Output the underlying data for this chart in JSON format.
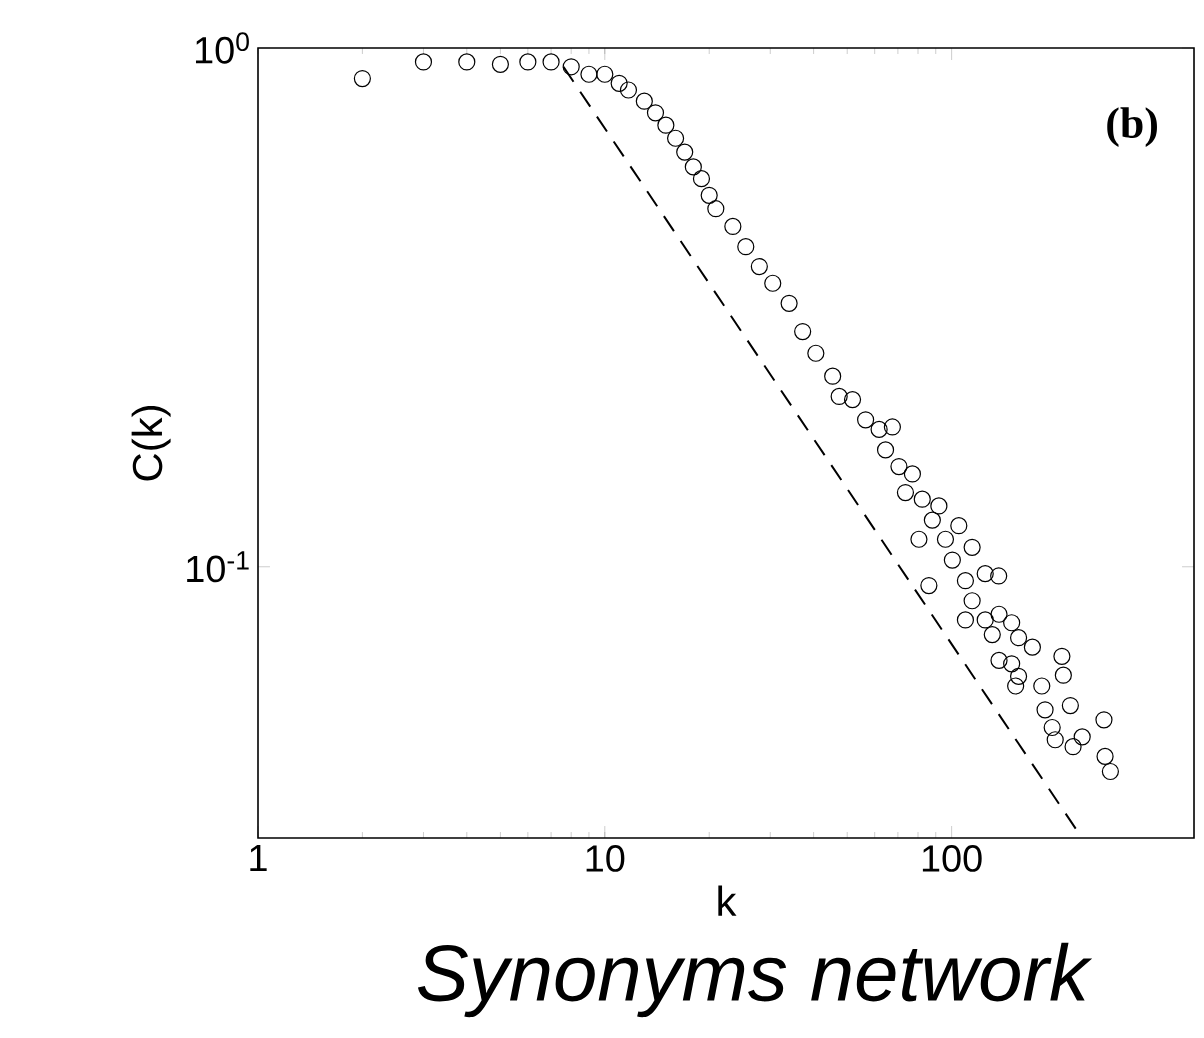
{
  "chart_data": {
    "type": "scatter",
    "log": "xy",
    "xlabel": "k",
    "ylabel": "C(k)",
    "xlim": [
      1,
      500
    ],
    "ylim": [
      0.03,
      1
    ],
    "xticks": [
      1,
      10,
      100
    ],
    "yticks": [
      {
        "value": 1,
        "label": "10$^{0}$"
      },
      {
        "value": 0.1,
        "label": "10$^{-1}$"
      }
    ],
    "marker": "circle",
    "annotations": [
      "**(b)**",
      "*Synonyms network*"
    ],
    "series": [
      {
        "color": "#000000",
        "x": [
          2,
          3,
          4,
          5,
          6,
          7,
          8,
          9,
          10,
          11,
          11.7,
          13,
          14,
          15,
          16,
          17,
          18,
          19,
          20,
          20.9,
          23.4,
          25.5,
          27.9,
          30.5,
          34.0,
          37.2,
          40.6,
          45.4,
          47.4,
          51.8,
          56.5,
          61.8,
          67.5,
          64.5,
          70.5,
          77.1,
          73.6,
          82.3,
          91.9,
          80.5,
          88.0,
          96.0,
          104.9,
          114.6,
          100.5,
          86.0,
          109.6,
          125,
          136.7,
          114.6,
          109.6,
          125,
          137,
          149,
          131,
          156,
          171,
          137,
          149,
          156,
          153,
          182,
          208,
          210,
          186,
          220,
          195,
          199,
          224,
          238,
          275,
          277,
          287
        ],
        "values": [
          0.873,
          0.94,
          0.94,
          0.93,
          0.94,
          0.94,
          0.92,
          0.89,
          0.89,
          0.855,
          0.83,
          0.79,
          0.75,
          0.71,
          0.67,
          0.63,
          0.59,
          0.56,
          0.52,
          0.49,
          0.453,
          0.414,
          0.379,
          0.352,
          0.322,
          0.284,
          0.258,
          0.233,
          0.213,
          0.21,
          0.192,
          0.184,
          0.186,
          0.168,
          0.156,
          0.151,
          0.139,
          0.135,
          0.131,
          0.113,
          0.123,
          0.113,
          0.12,
          0.109,
          0.103,
          0.092,
          0.094,
          0.097,
          0.096,
          0.086,
          0.079,
          0.079,
          0.081,
          0.078,
          0.074,
          0.073,
          0.07,
          0.066,
          0.065,
          0.0615,
          0.0589,
          0.0589,
          0.0672,
          0.0618,
          0.053,
          0.054,
          0.049,
          0.0464,
          0.045,
          0.047,
          0.0507,
          0.0431,
          0.0403
        ]
      },
      {
        "type": "line",
        "line_style": "dashed",
        "marker": "none",
        "color": "#000000",
        "x": [
          7.6,
          230
        ],
        "values": [
          0.92,
          0.031
        ]
      }
    ]
  }
}
